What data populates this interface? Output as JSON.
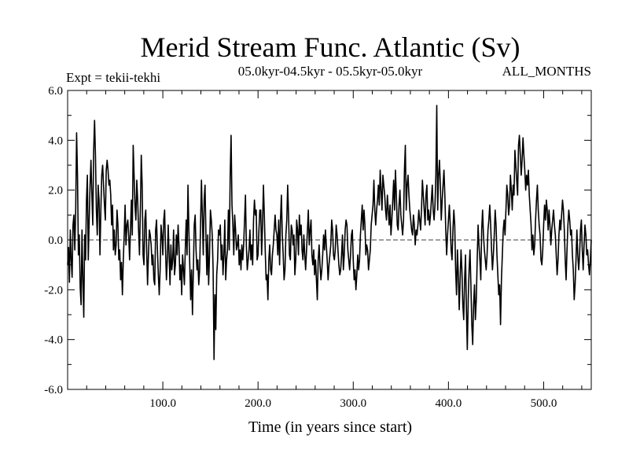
{
  "chart_data": {
    "type": "line",
    "title": "Merid Stream Func. Atlantic (Sv)",
    "subtitle_left": "Expt = tekii-tekhi",
    "subtitle_center": "05.0kyr-04.5kyr - 05.5kyr-05.0kyr",
    "subtitle_right": "ALL_MONTHS",
    "xlabel": "Time (in years since start)",
    "ylabel": "",
    "xlim": [
      0,
      550
    ],
    "ylim": [
      -6,
      6
    ],
    "xticks": [
      100,
      200,
      300,
      400,
      500
    ],
    "xtick_labels": [
      "100.0",
      "200.0",
      "300.0",
      "400.0",
      "500.0"
    ],
    "yticks": [
      -6,
      -4,
      -2,
      0,
      2,
      4,
      6
    ],
    "ytick_labels": [
      "-6.0",
      "-4.0",
      "-2.0",
      "0.0",
      "2.0",
      "4.0",
      "6.0"
    ],
    "zero_line": true,
    "grid": false,
    "line_color": "#000000",
    "series": [
      {
        "values": [
          -1.0,
          -0.3,
          -1.7,
          0.4,
          -0.8,
          -1.5,
          0.6,
          1.0,
          -0.4,
          1.2,
          4.3,
          2.6,
          -0.6,
          0.2,
          -1.9,
          -2.6,
          0.4,
          -1.6,
          -3.1,
          0.2,
          -0.8,
          1.6,
          2.6,
          -0.8,
          0.8,
          2.2,
          3.2,
          1.8,
          0.6,
          3.6,
          4.8,
          3.4,
          1.2,
          0.2,
          2.2,
          1.6,
          -0.6,
          1.2,
          2.6,
          3.0,
          2.2,
          1.4,
          0.8,
          2.8,
          3.2,
          2.8,
          2.2,
          2.4,
          1.8,
          0.6,
          1.4,
          -0.4,
          0.4,
          -0.6,
          -0.2,
          1.2,
          0.6,
          -0.8,
          -0.4,
          -1.6,
          -0.9,
          -2.2,
          -0.8,
          0.2,
          1.4,
          -0.2,
          0.6,
          0.8,
          0.2,
          -0.8,
          0.4,
          1.6,
          0.2,
          3.8,
          2.6,
          1.4,
          0.8,
          2.4,
          1.6,
          0.4,
          -0.6,
          1.2,
          3.4,
          2.2,
          -0.6,
          -1.0,
          0.8,
          1.2,
          -0.4,
          -1.8,
          -0.6,
          0.4,
          0.2,
          -0.2,
          -1.0,
          -0.6,
          -1.6,
          -1.8,
          0.4,
          0.8,
          -0.4,
          -1.4,
          -2.2,
          -1.2,
          0.6,
          0.2,
          -0.6,
          0.8,
          1.2,
          -0.4,
          -1.6,
          -0.8,
          0.6,
          -0.6,
          -1.8,
          -0.2,
          -1.2,
          -0.8,
          0.4,
          -1.4,
          -1.0,
          0.2,
          -0.6,
          0.6,
          -0.2,
          -1.6,
          -1.0,
          -2.2,
          -0.6,
          -1.2,
          -1.8,
          -0.4,
          0.8,
          -0.6,
          2.2,
          0.4,
          -1.0,
          -2.4,
          -1.2,
          -3.0,
          -1.2,
          0.6,
          1.0,
          -0.4,
          -1.2,
          -0.8,
          -1.8,
          -1.2,
          0.6,
          2.4,
          1.0,
          -0.6,
          1.6,
          2.2,
          0.2,
          -1.4,
          0.2,
          -1.8,
          -0.6,
          1.2,
          0.8,
          0.2,
          -1.2,
          -4.8,
          -2.2,
          -3.6,
          -1.4,
          -0.8,
          0.4,
          0.2,
          0.6,
          -0.8,
          -0.2,
          -1.4,
          -0.6,
          0.8,
          -1.6,
          -0.8,
          -0.4,
          1.2,
          -0.4,
          2.6,
          4.2,
          1.4,
          0.6,
          -0.6,
          1.0,
          0.4,
          -0.4,
          -0.2,
          0.2,
          -1.0,
          -0.4,
          -1.2,
          -0.2,
          -0.8,
          -0.2,
          0.8,
          1.8,
          -0.2,
          -1.2,
          -0.8,
          -0.4,
          0.4,
          -0.8,
          -0.2,
          -1.0,
          0.8,
          1.6,
          1.0,
          1.2,
          -0.8,
          -0.6,
          0.4,
          1.2,
          1.2,
          -0.6,
          0.6,
          2.2,
          1.0,
          -0.4,
          -1.6,
          -1.4,
          -2.4,
          -0.8,
          -0.2,
          -1.2,
          -1.4,
          -0.6,
          -0.2,
          0.4,
          1.0,
          0.4,
          0.2,
          -0.6,
          0.8,
          -1.0,
          0.8,
          1.8,
          0.2,
          -0.6,
          -1.6,
          -1.2,
          0.2,
          0.8,
          2.2,
          1.0,
          -0.6,
          -0.8,
          0.6,
          0.4,
          -0.2,
          0.2,
          -1.4,
          -0.8,
          0.8,
          0.4,
          -0.6,
          1.0,
          0.2,
          0.6,
          -0.4,
          -0.8,
          0.2,
          -0.6,
          -1.2,
          -0.4,
          0.4,
          1.2,
          -0.2,
          0.4,
          0.8,
          -0.6,
          -1.0,
          -0.4,
          -1.4,
          -0.8,
          -1.6,
          -2.4,
          -0.8,
          -0.2,
          -1.0,
          -1.6,
          -1.2,
          -0.6,
          0.2,
          -0.4,
          0.4,
          -0.2,
          -0.8,
          -1.6,
          -1.0,
          -0.6,
          -0.2,
          0.8,
          0.4,
          -0.6,
          -0.8,
          -0.4,
          0.6,
          0.2,
          -0.4,
          -1.0,
          -1.4,
          -1.2,
          -0.6,
          0.2,
          -1.2,
          -0.6,
          0.4,
          0.8,
          0.6,
          -0.4,
          -0.8,
          -1.2,
          -0.6,
          0.2,
          0.4,
          -0.8,
          -1.6,
          -1.2,
          -2.0,
          -1.4,
          -0.6,
          -1.2,
          -0.8,
          0.2,
          0.8,
          1.4,
          0.4,
          1.2,
          0.6,
          -0.6,
          -0.2,
          -0.4,
          -1.2,
          -0.8,
          -0.4,
          0.6,
          1.0,
          1.4,
          2.4,
          1.2,
          0.6,
          1.2,
          1.6,
          2.2,
          1.4,
          2.8,
          2.0,
          1.2,
          2.6,
          2.2,
          1.8,
          1.2,
          0.8,
          1.8,
          1.2,
          0.6,
          1.4,
          0.2,
          0.8,
          1.6,
          2.4,
          1.2,
          2.8,
          1.8,
          0.6,
          0.4,
          1.4,
          2.0,
          1.0,
          0.6,
          0.2,
          0.8,
          2.8,
          3.8,
          1.2,
          2.2,
          2.6,
          1.8,
          1.2,
          0.8,
          0.4,
          0.2,
          1.0,
          0.6,
          -0.2,
          0.4,
          0.2,
          0.6,
          1.2,
          0.8,
          0.4,
          1.2,
          2.4,
          1.8,
          1.2,
          0.6,
          1.8,
          2.2,
          0.8,
          1.2,
          0.6,
          1.0,
          1.6,
          2.2,
          1.2,
          0.8,
          1.4,
          2.6,
          5.4,
          1.2,
          2.6,
          3.2,
          2.2,
          0.8,
          1.6,
          2.2,
          2.8,
          1.8,
          0.4,
          -0.6,
          0.2,
          0.8,
          1.4,
          0.6,
          -0.4,
          -0.8,
          0.4,
          1.2,
          0.6,
          -1.2,
          -2.2,
          -0.4,
          -1.4,
          -2.8,
          -1.6,
          -0.4,
          -1.2,
          -2.6,
          -3.2,
          -1.6,
          -0.6,
          -2.8,
          -4.4,
          -2.4,
          -1.2,
          -0.4,
          -1.8,
          -3.4,
          -4.2,
          -2.6,
          -1.8,
          -3.2,
          -2.4,
          -0.8,
          0.6,
          -0.2,
          -0.8,
          -1.6,
          0.4,
          1.2,
          0.2,
          -0.4,
          -0.8,
          -1.2,
          -0.6,
          0.4,
          0.8,
          1.4,
          0.6,
          -0.4,
          -1.2,
          -0.6,
          0.2,
          1.2,
          0.6,
          -0.6,
          -1.4,
          -2.2,
          -1.8,
          -3.4,
          -1.6,
          -0.6,
          0.4,
          0.8,
          0.2,
          1.2,
          2.2,
          1.8,
          1.0,
          1.4,
          2.6,
          2.0,
          1.2,
          2.2,
          1.8,
          3.6,
          3.0,
          2.4,
          1.8,
          3.8,
          4.2,
          3.4,
          2.6,
          3.2,
          4.1,
          3.4,
          2.8,
          2.0,
          2.6,
          2.2,
          2.8,
          1.8,
          1.2,
          0.6,
          -0.4,
          0.2,
          -0.6,
          -0.2,
          0.8,
          1.6,
          2.2,
          1.2,
          0.6,
          0.2,
          -0.8,
          -1.0,
          -0.4,
          0.6,
          1.4,
          0.8,
          1.6,
          1.2,
          0.4,
          1.2,
          0.6,
          -0.2,
          0.4,
          0.8,
          1.2,
          0.6,
          0.2,
          -0.6,
          -1.4,
          -0.8,
          0.2,
          0.8,
          0.4,
          1.0,
          1.6,
          1.2,
          0.4,
          -0.8,
          -1.6,
          -0.4,
          0.6,
          1.2,
          0.8,
          0.2,
          0.4,
          -0.6,
          -1.2,
          -2.4,
          -1.8,
          -0.8,
          0.4,
          -0.6,
          -1.2,
          -0.6,
          0.4,
          0.8,
          -0.4,
          -1.2,
          -0.2,
          0.6,
          0.2,
          -0.6,
          -0.4,
          -1.0,
          -1.4,
          -0.8,
          0.0
        ]
      }
    ]
  }
}
